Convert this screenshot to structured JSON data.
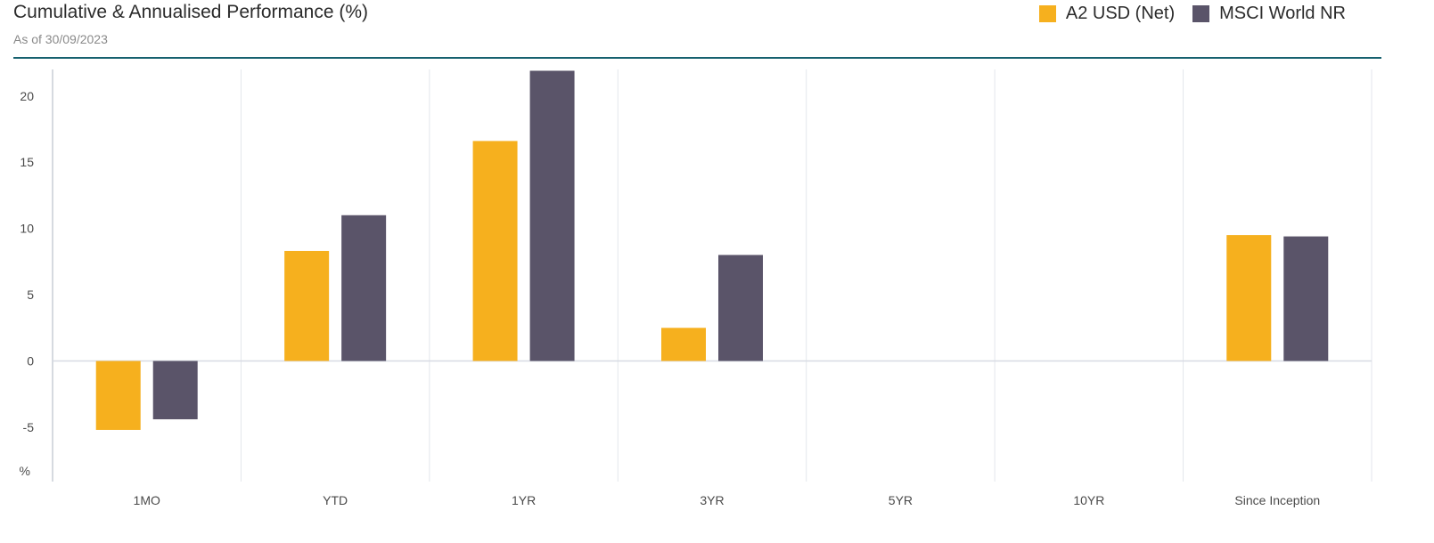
{
  "header": {
    "title": "Cumulative & Annualised Performance (%)",
    "subtitle": "As of 30/09/2023"
  },
  "legend": [
    {
      "label": "A2 USD (Net)",
      "color": "#f6b01e"
    },
    {
      "label": "MSCI World NR",
      "color": "#5a5469"
    }
  ],
  "chart_data": {
    "type": "bar",
    "categories": [
      "1MO",
      "YTD",
      "1YR",
      "3YR",
      "5YR",
      "10YR",
      "Since Inception"
    ],
    "series": [
      {
        "name": "A2 USD (Net)",
        "color": "#f6b01e",
        "values": [
          -5.2,
          8.3,
          16.6,
          2.5,
          null,
          null,
          9.5
        ]
      },
      {
        "name": "MSCI World NR",
        "color": "#5a5469",
        "values": [
          -4.4,
          11.0,
          21.9,
          8.0,
          null,
          null,
          9.4
        ]
      }
    ],
    "yticks": [
      "20",
      "15",
      "10",
      "5",
      "0",
      "-5"
    ],
    "ylabel": "%",
    "ylim": [
      -9.1,
      22
    ]
  }
}
